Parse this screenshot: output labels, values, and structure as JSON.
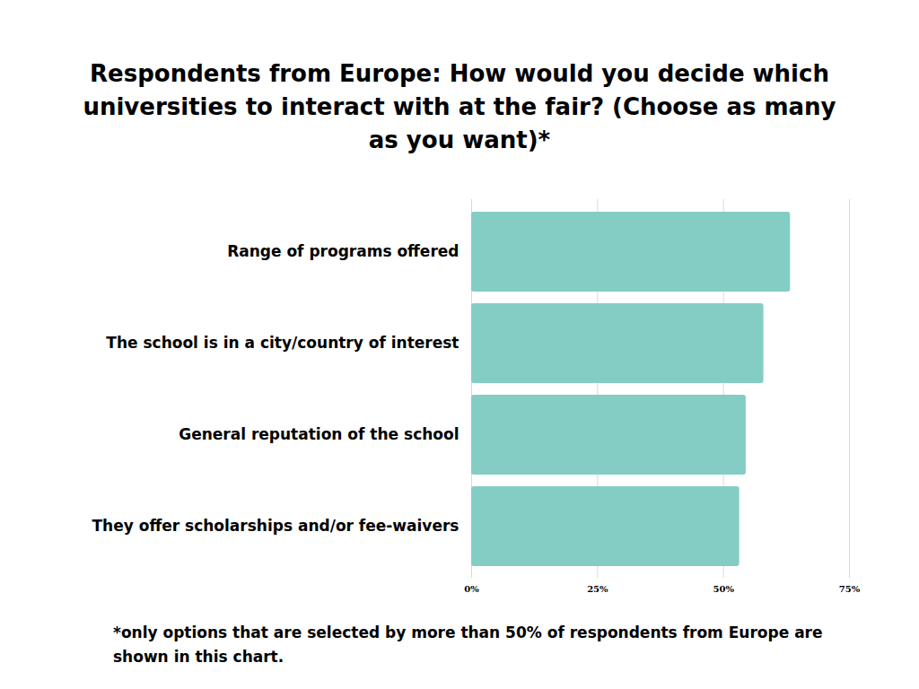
{
  "chart_data": {
    "type": "bar",
    "orientation": "horizontal",
    "title": "Respondents from Europe: How would you decide which universities to interact with at the fair? (Choose as many as you want)*",
    "categories": [
      "Range of programs offered",
      "The school is in a city/country of interest",
      "General reputation of the school",
      "They offer scholarships and/or fee-waivers"
    ],
    "values": [
      63.3,
      58,
      54.5,
      53.2
    ],
    "color": "#83cdc4",
    "xlim": [
      0,
      75
    ],
    "xticks": [
      {
        "value": 0,
        "label": "0%"
      },
      {
        "value": 25,
        "label": "25%"
      },
      {
        "value": 50,
        "label": "50%"
      },
      {
        "value": 75,
        "label": "75%"
      }
    ],
    "grid": true,
    "caption": "*only options that are selected by more than 50% of respondents from Europe are shown in this chart."
  }
}
